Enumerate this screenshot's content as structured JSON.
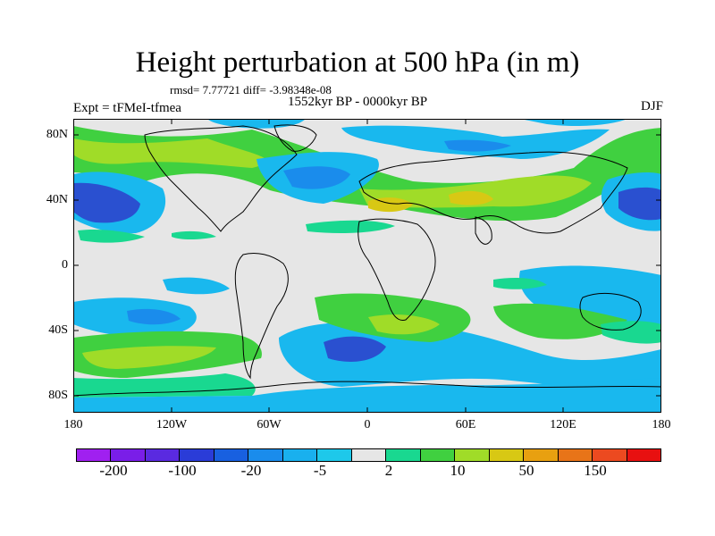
{
  "title": "Height perturbation at 500 hPa (in m)",
  "stats": "rmsd= 7.77721 diff= -3.98348e-08",
  "experiment": "Expt = tFMeI-tfmea",
  "period": "1552kyr BP - 0000kyr BP",
  "season": "DJF",
  "lat_labels": [
    "80N",
    "40N",
    "0",
    "40S",
    "80S"
  ],
  "lon_labels": [
    "180",
    "120W",
    "60W",
    "0",
    "60E",
    "120E",
    "180"
  ],
  "colorbar": {
    "colors": [
      "#a020f0",
      "#7a1ee8",
      "#5a2ae0",
      "#2a3cd8",
      "#1860e0",
      "#1a8cec",
      "#19b0ee",
      "#1ec8ea",
      "#e6e6e6",
      "#19d890",
      "#40d040",
      "#a0dc28",
      "#d8c814",
      "#e8a010",
      "#e87418",
      "#ec4a20",
      "#e81010"
    ],
    "tick_labels": [
      "-200",
      "-100",
      "-20",
      "-5",
      "2",
      "10",
      "50",
      "150"
    ]
  },
  "palette": {
    "neutral": "#e6e6e6",
    "blue_dark": "#2a50d0",
    "blue": "#1a8cec",
    "cyan": "#19b8ee",
    "mint": "#19d890",
    "green": "#40d040",
    "yellowgreen": "#a0dc28",
    "olive": "#d8c814"
  }
}
